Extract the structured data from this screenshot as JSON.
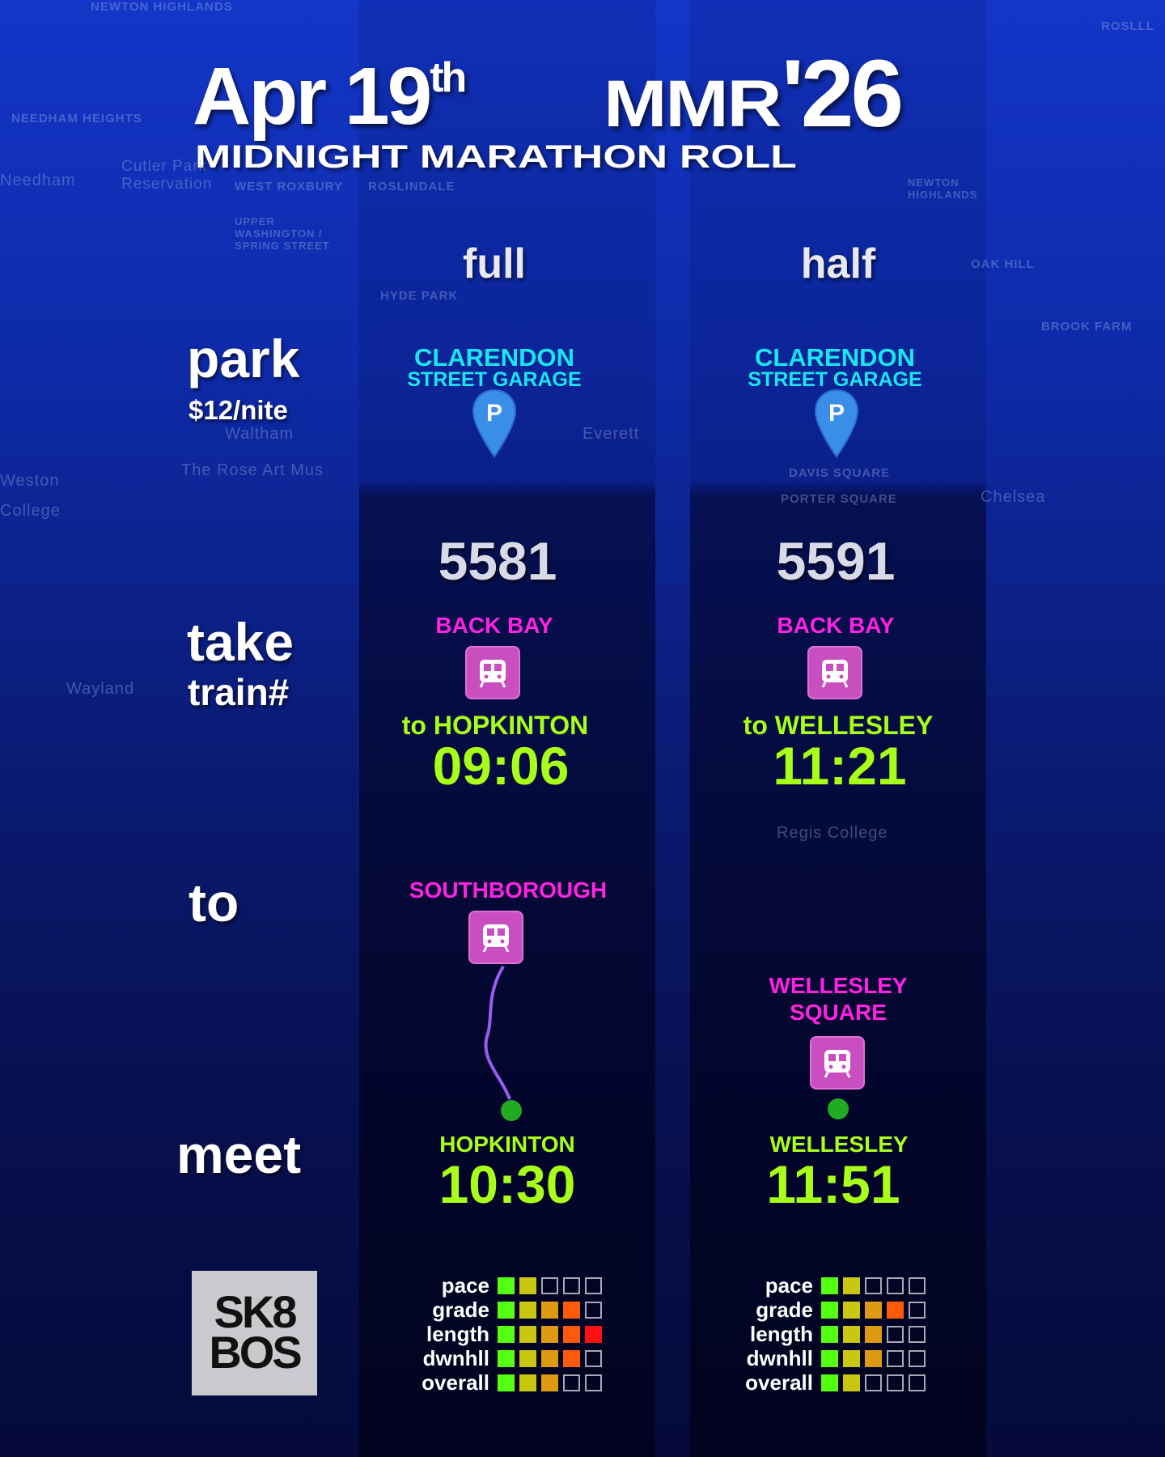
{
  "header": {
    "date": "Apr 19",
    "date_suffix": "th",
    "event_abbr": "MMR",
    "year": "'26",
    "subtitle": "MIDNIGHT MARATHON ROLL"
  },
  "columns": [
    {
      "label": "full",
      "park_name_line1": "CLARENDON",
      "park_name_line2": "STREET GARAGE",
      "train_number": "5581",
      "board_station": "BACK BAY",
      "train_destination": "to HOPKINTON",
      "departure_time": "09:06",
      "to_station_line1": "SOUTHBOROUGH",
      "to_station_line2": "",
      "meet_location": "HOPKINTON",
      "meet_time": "10:30",
      "ratings": {
        "pace": 2,
        "grade": 4,
        "length": 5,
        "dwnhll": 4,
        "overall": 3
      }
    },
    {
      "label": "half",
      "park_name_line1": "CLARENDON",
      "park_name_line2": "STREET GARAGE",
      "train_number": "5591",
      "board_station": "BACK BAY",
      "train_destination": "to WELLESLEY",
      "departure_time": "11:21",
      "to_station_line1": "WELLESLEY",
      "to_station_line2": "SQUARE",
      "meet_location": "WELLESLEY",
      "meet_time": "11:51",
      "ratings": {
        "pace": 2,
        "grade": 4,
        "length": 3,
        "dwnhll": 3,
        "overall": 2
      }
    }
  ],
  "rows": {
    "park": "park",
    "park_price": "$12/nite",
    "take": "take",
    "train": "train#",
    "to": "to",
    "meet": "meet"
  },
  "rating_labels": [
    "pace",
    "grade",
    "length",
    "dwnhll",
    "overall"
  ],
  "rating_colors": [
    "#55ff11",
    "#c8c811",
    "#e09a11",
    "#ff5a08",
    "#ff1010"
  ],
  "logo": {
    "line1": "SK8",
    "line2": "BOS"
  },
  "icons": {
    "parking": "parking-pin-icon",
    "train": "train-icon"
  },
  "map_labels": [
    "NEWTON HIGHLANDS",
    "NEEDHAM HEIGHTS",
    "Needham",
    "Cutler Park Reservation",
    "WEST ROXBURY",
    "UPPER WASHINGTON / SPRING STREET",
    "OAK HILL",
    "ROSLINDALE",
    "HYDE PARK",
    "Waltham",
    "The Rose Art Mus",
    "Weston",
    "College",
    "Wayland",
    "Everett",
    "Chelsea",
    "NEWTON HIGHLANDS",
    "BROOK FARM",
    "ROSLLL",
    "DAVIS SQUARE",
    "PORTER SQUARE",
    "Regis College"
  ]
}
